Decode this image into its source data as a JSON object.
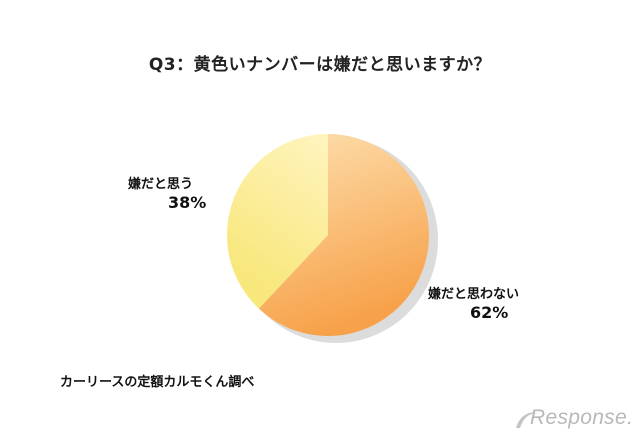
{
  "chart_data": {
    "type": "pie",
    "title": "Q3：黄色いナンバーは嫌だと思いますか？",
    "slices": [
      {
        "label": "嫌だと思わない",
        "value": 62,
        "value_label": "62%",
        "color_light": "#fde0b0",
        "color_dark": "#f7a24a"
      },
      {
        "label": "嫌だと思う",
        "value": 38,
        "value_label": "38%",
        "color_light": "#fff4c0",
        "color_dark": "#f8e77a"
      }
    ],
    "legend": "none"
  },
  "source_note": "カーリースの定額カルモくん調べ",
  "logo_text": "Response."
}
